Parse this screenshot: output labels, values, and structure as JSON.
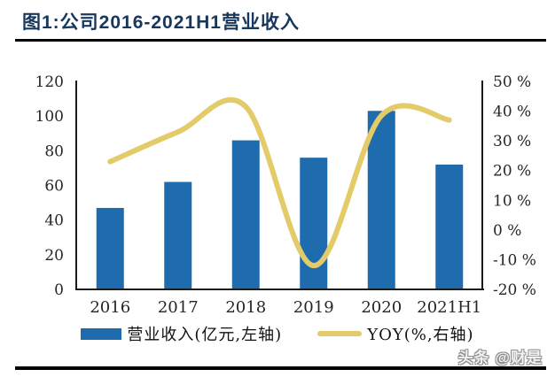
{
  "header": {
    "title": "图1:公司2016-2021H1营业收入",
    "accent_color": "#17375D",
    "rule_color": "#000000"
  },
  "watermark": {
    "text": "头条 @财是"
  },
  "chart_data": {
    "type": "bar",
    "subtype": "bar+line combo, dual axis",
    "title": "公司2016-2021H1营业收入",
    "categories": [
      "2016",
      "2017",
      "2018",
      "2019",
      "2020",
      "2021H1"
    ],
    "series": [
      {
        "name": "营业收入(亿元,左轴)",
        "type": "bar",
        "axis": "left",
        "color": "#1E6CAE",
        "values": [
          47,
          62,
          86,
          76,
          103,
          72
        ]
      },
      {
        "name": "YOY(%,右轴)",
        "type": "line",
        "axis": "right",
        "color": "#E4CB69",
        "values": [
          23,
          33,
          41.5,
          -12,
          38.5,
          37
        ]
      }
    ],
    "left_axis": {
      "min": 0,
      "max": 120,
      "step": 20,
      "ticks": [
        "0",
        "20",
        "40",
        "60",
        "80",
        "100",
        "120"
      ]
    },
    "right_axis": {
      "min": -20,
      "max": 50,
      "step": 10,
      "ticks": [
        "-20 %",
        "-10 %",
        "0 %",
        "10 %",
        "20 %",
        "30 %",
        "40 %",
        "50 %"
      ]
    },
    "grid": false,
    "legend_position": "bottom",
    "axis_color": "#1a1a1a",
    "tick_label_color": "#262626",
    "legend": [
      {
        "label": "营业收入(亿元,左轴)",
        "swatch": "bar",
        "color": "#1E6CAE"
      },
      {
        "label": "YOY(%,右轴)",
        "swatch": "line",
        "color": "#E4CB69"
      }
    ]
  }
}
